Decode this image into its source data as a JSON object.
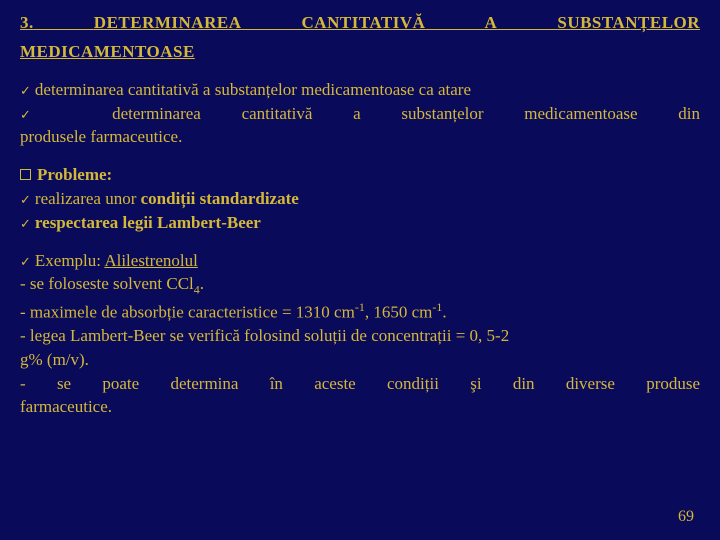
{
  "title": {
    "row1_left": "3.",
    "row1_mid1": "DETERMINAREA",
    "row1_mid2": "CANTITATIVĂ",
    "row1_mid3": "A",
    "row1_right": "SUBSTANȚELOR",
    "row2": "MEDICAMENTOASE"
  },
  "block1": {
    "l1": "determinarea cantitativă a substanțelor medicamentoase ca atare",
    "l2a": "determinarea",
    "l2b": "cantitativă",
    "l2c": "a",
    "l2d": "substanțelor",
    "l2e": "medicamentoase",
    "l2f": "din",
    "l3": "produsele farmaceutice."
  },
  "block2": {
    "l1": "Probleme:",
    "l2a": "realizarea unor ",
    "l2b": "condiții standardizate",
    "l3": "respectarea legii Lambert-Beer"
  },
  "block3": {
    "l1a": "Exemplu: ",
    "l1b": "Alilestrenolul",
    "l2a": "- se foloseste solvent CCl",
    "l2b": ".",
    "l3a": "maximele de absorbție caracteristice = 1310 cm",
    "l3b": ", 1650 cm",
    "l3c": ".",
    "l4": "legea Lambert-Beer se verifică folosind soluții de concentrații = 0, 5-2",
    "l5": "g% (m/v).",
    "l6a": "se",
    "l6b": "poate",
    "l6c": "determina",
    "l6d": "în",
    "l6e": "aceste",
    "l6f": "condiții",
    "l6g": "şi",
    "l6h": "din",
    "l6i": "diverse",
    "l6j": "produse",
    "l7": "farmaceutice."
  },
  "pageNumber": "69",
  "sub4": "4",
  "supm1": "-1",
  "dash": "- ",
  "check": "✓"
}
